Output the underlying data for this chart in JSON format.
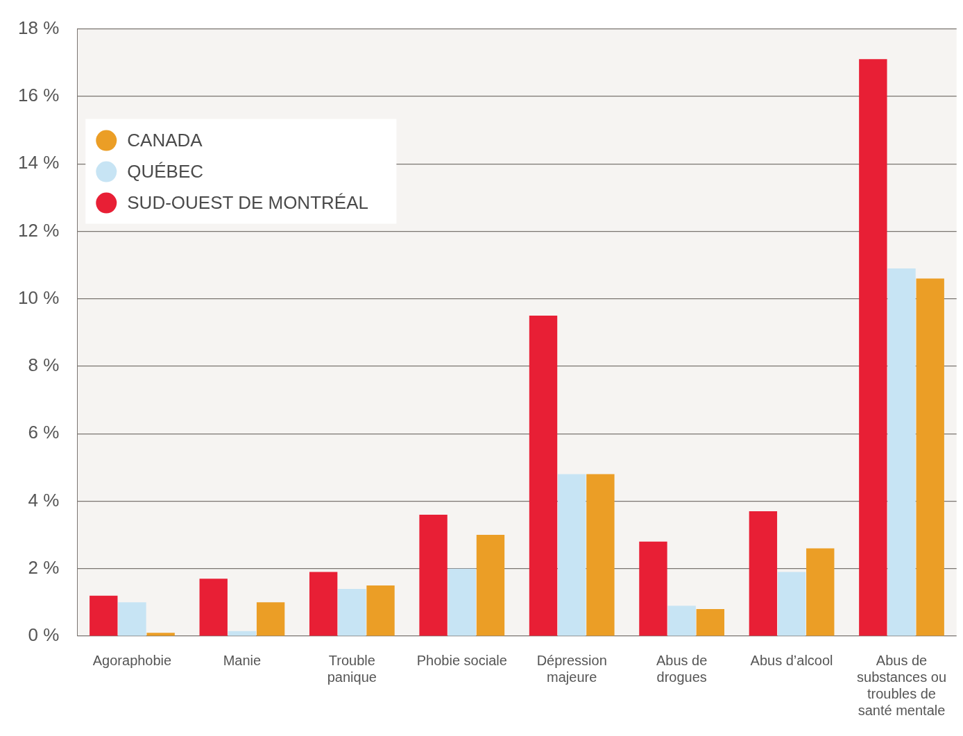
{
  "chart_data": {
    "type": "bar",
    "categories": [
      "Agoraphobie",
      "Manie",
      "Trouble panique",
      "Phobie sociale",
      "Dépression majeure",
      "Abus de drogues",
      "Abus d’alcool",
      "Abus de substances ou troubles de santé mentale"
    ],
    "series": [
      {
        "name": "SUD-OUEST DE MONTRÉAL",
        "color": "#e81f35",
        "values": [
          1.2,
          1.7,
          1.9,
          3.6,
          9.5,
          2.8,
          3.7,
          17.1
        ]
      },
      {
        "name": "QUÉBEC",
        "color": "#c7e4f4",
        "values": [
          1.0,
          0.15,
          1.4,
          2.0,
          4.8,
          0.9,
          1.9,
          10.9
        ]
      },
      {
        "name": "CANADA",
        "color": "#eb9e26",
        "values": [
          0.1,
          1.0,
          1.5,
          3.0,
          4.8,
          0.8,
          2.6,
          10.6
        ]
      }
    ],
    "ylim": [
      0,
      18
    ],
    "yticks": [
      {
        "value": 0,
        "label": "0 %"
      },
      {
        "value": 2,
        "label": "2 %"
      },
      {
        "value": 4,
        "label": "4 %"
      },
      {
        "value": 6,
        "label": "6 %"
      },
      {
        "value": 8,
        "label": "8 %"
      },
      {
        "value": 10,
        "label": "10 %"
      },
      {
        "value": 12,
        "label": "12 %"
      },
      {
        "value": 14,
        "label": "14 %"
      },
      {
        "value": 16,
        "label": "16 %"
      },
      {
        "value": 18,
        "label": "18 %"
      }
    ],
    "grid": "y",
    "legend": "top left"
  }
}
